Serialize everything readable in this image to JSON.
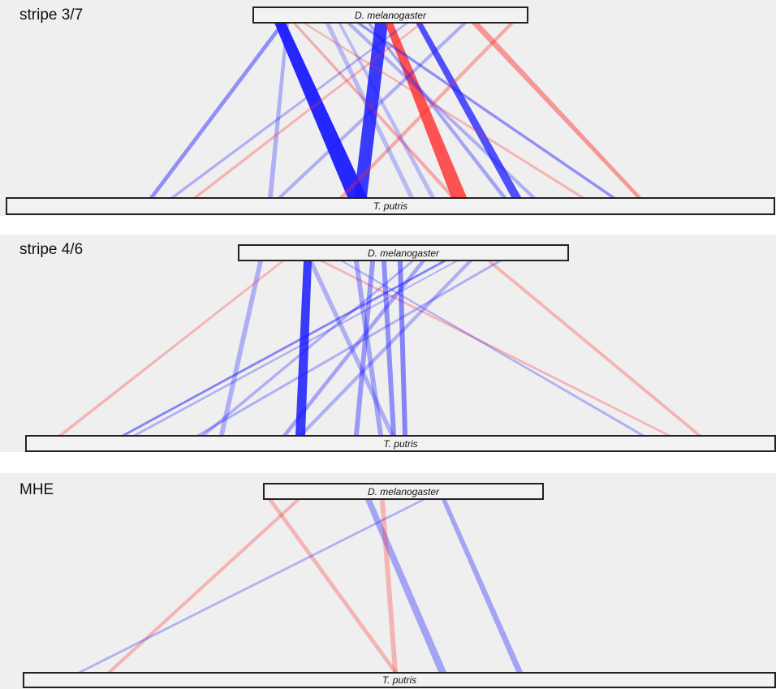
{
  "panels": [
    {
      "label": "stripe 3/7",
      "top_species": "D. melanogaster",
      "bottom_species": "T. putris"
    },
    {
      "label": "stripe 4/6",
      "top_species": "D. melanogaster",
      "bottom_species": "T. putris"
    },
    {
      "label": "MHE",
      "top_species": "D. melanogaster",
      "bottom_species": "T. putris"
    }
  ],
  "colors": {
    "blue": "#1a1aff",
    "red": "#ff2a2a",
    "background": "#efefef"
  }
}
